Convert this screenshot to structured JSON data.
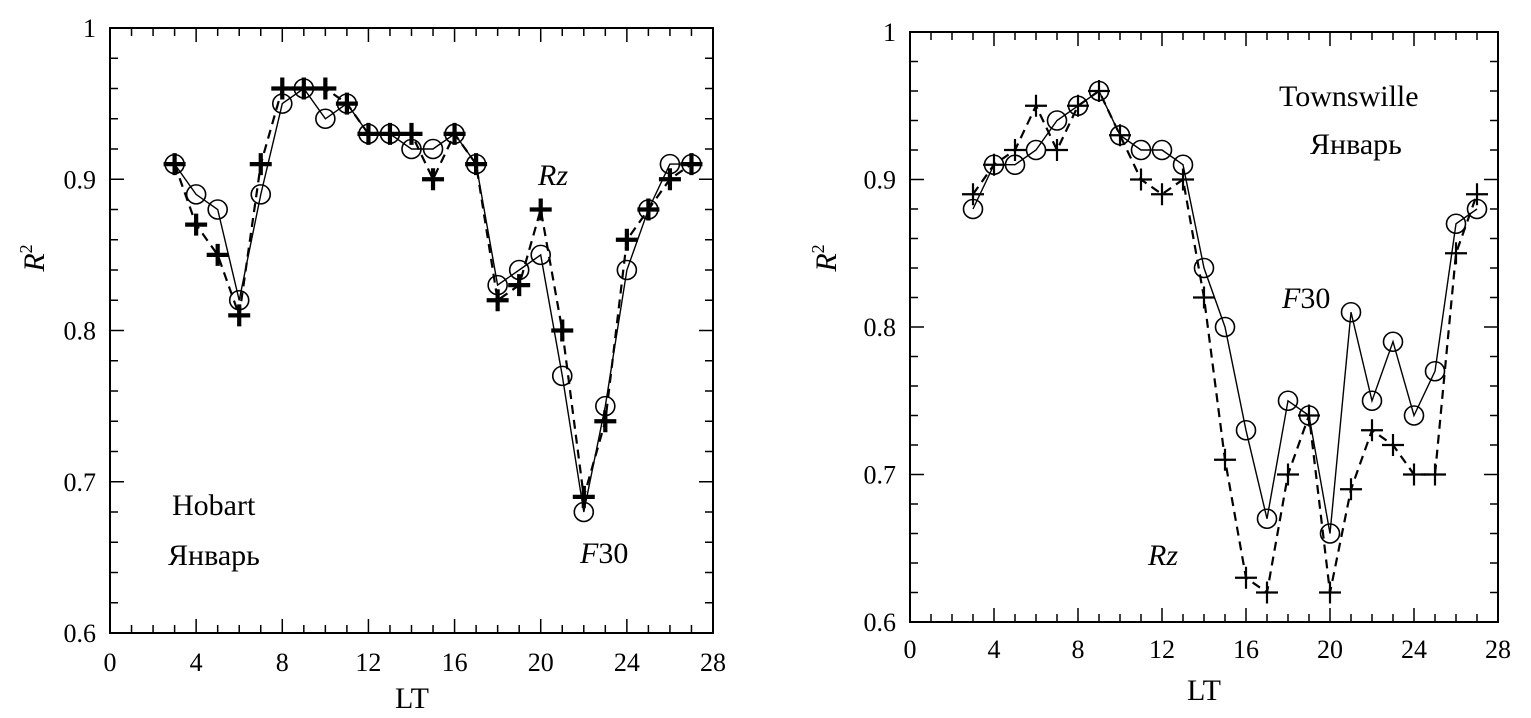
{
  "chart_data": [
    {
      "type": "line",
      "station": "Hobart",
      "month": "Январь",
      "xlabel": "LT",
      "ylabel": "R",
      "ylabel_sup": "2",
      "xlim": [
        0,
        28
      ],
      "ylim": [
        0.6,
        1.0
      ],
      "xticks": [
        0,
        4,
        8,
        12,
        16,
        20,
        24,
        28
      ],
      "yticks": [
        0.6,
        0.7,
        0.8,
        0.9,
        1.0
      ],
      "ytick_labels": [
        "0.6",
        "0.7",
        "0.8",
        "0.9",
        "1"
      ],
      "x": [
        3,
        4,
        5,
        6,
        7,
        8,
        9,
        10,
        11,
        12,
        13,
        14,
        15,
        16,
        17,
        18,
        19,
        20,
        21,
        22,
        23,
        24,
        25,
        26,
        27
      ],
      "series": [
        {
          "name": "F30",
          "label_prefix": "F",
          "label_suffix": "30",
          "style": "solid-circle",
          "values": [
            0.91,
            0.89,
            0.88,
            0.82,
            0.89,
            0.95,
            0.96,
            0.94,
            0.95,
            0.93,
            0.93,
            0.92,
            0.92,
            0.93,
            0.91,
            0.83,
            0.84,
            0.85,
            0.77,
            0.68,
            0.75,
            0.84,
            0.88,
            0.91,
            0.91
          ]
        },
        {
          "name": "Rz",
          "label_prefix": "Rz",
          "label_suffix": "",
          "style": "dashed-plus",
          "values": [
            0.91,
            0.87,
            0.85,
            0.81,
            0.91,
            0.96,
            0.96,
            0.96,
            0.95,
            0.93,
            0.93,
            0.93,
            0.9,
            0.93,
            0.91,
            0.82,
            0.83,
            0.88,
            0.8,
            0.69,
            0.74,
            0.86,
            0.88,
            0.9,
            0.91
          ]
        }
      ]
    },
    {
      "type": "line",
      "station": "Townswille",
      "month": "Январь",
      "xlabel": "LT",
      "ylabel": "R",
      "ylabel_sup": "2",
      "xlim": [
        0,
        28
      ],
      "ylim": [
        0.6,
        1.0
      ],
      "xticks": [
        0,
        4,
        8,
        12,
        16,
        20,
        24,
        28
      ],
      "yticks": [
        0.6,
        0.7,
        0.8,
        0.9,
        1.0
      ],
      "ytick_labels": [
        "0.6",
        "0.7",
        "0.8",
        "0.9",
        "1"
      ],
      "x": [
        3,
        4,
        5,
        6,
        7,
        8,
        9,
        10,
        11,
        12,
        13,
        14,
        15,
        16,
        17,
        18,
        19,
        20,
        21,
        22,
        23,
        24,
        25,
        26,
        27
      ],
      "series": [
        {
          "name": "F30",
          "label_prefix": "F",
          "label_suffix": "30",
          "style": "solid-circle",
          "values": [
            0.88,
            0.91,
            0.91,
            0.92,
            0.94,
            0.95,
            0.96,
            0.93,
            0.92,
            0.92,
            0.91,
            0.84,
            0.8,
            0.73,
            0.67,
            0.75,
            0.74,
            0.66,
            0.81,
            0.75,
            0.79,
            0.74,
            0.77,
            0.87,
            0.88
          ]
        },
        {
          "name": "Rz",
          "label_prefix": "Rz",
          "label_suffix": "",
          "style": "dashed-plus",
          "values": [
            0.89,
            0.91,
            0.92,
            0.95,
            0.92,
            0.95,
            0.96,
            0.93,
            0.9,
            0.89,
            0.9,
            0.82,
            0.71,
            0.63,
            0.62,
            0.7,
            0.74,
            0.62,
            0.69,
            0.73,
            0.72,
            0.7,
            0.7,
            0.85,
            0.89
          ]
        }
      ]
    }
  ]
}
